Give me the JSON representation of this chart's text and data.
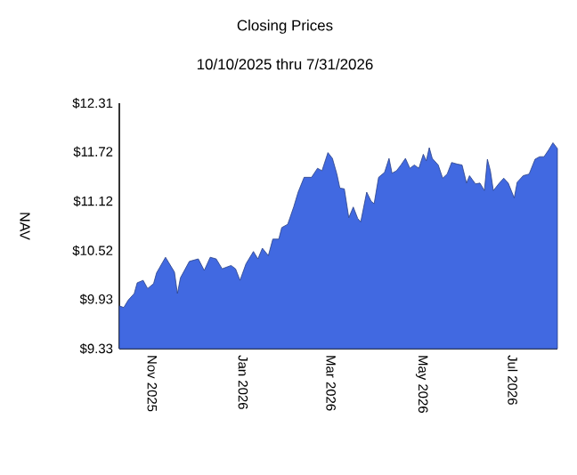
{
  "chart_data": {
    "type": "area",
    "title": "Closing Prices",
    "subtitle": "10/10/2025 thru 7/31/2026",
    "ylabel": "NAV",
    "xlim": [
      "2025-10-10",
      "2026-07-31"
    ],
    "xticks": [
      {
        "value": "2025-11-01",
        "label": "Nov 2025"
      },
      {
        "value": "2026-01-01",
        "label": "Jan 2026"
      },
      {
        "value": "2026-03-01",
        "label": "Mar 2026"
      },
      {
        "value": "2026-05-01",
        "label": "May 2026"
      },
      {
        "value": "2026-07-01",
        "label": "Jul 2026"
      }
    ],
    "ylim": [
      9.33,
      12.31
    ],
    "yticks": [
      {
        "value": 9.33,
        "label": "$9.33"
      },
      {
        "value": 9.93,
        "label": "$9.93"
      },
      {
        "value": 10.52,
        "label": "$10.52"
      },
      {
        "value": 11.12,
        "label": "$11.12"
      },
      {
        "value": 11.72,
        "label": "$11.72"
      },
      {
        "value": 12.31,
        "label": "$12.31"
      }
    ],
    "grid": false,
    "series": [
      {
        "color": "#4169e1",
        "x": [
          "2025-10-10",
          "2025-10-13",
          "2025-10-16",
          "2025-10-20",
          "2025-10-22",
          "2025-10-26",
          "2025-10-29",
          "2025-11-02",
          "2025-11-04",
          "2025-11-10",
          "2025-11-16",
          "2025-11-18",
          "2025-11-20",
          "2025-11-26",
          "2025-12-02",
          "2025-12-06",
          "2025-12-10",
          "2025-12-14",
          "2025-12-18",
          "2025-12-24",
          "2025-12-27",
          "2025-12-30",
          "2026-01-03",
          "2026-01-08",
          "2026-01-11",
          "2026-01-14",
          "2026-01-18",
          "2026-01-21",
          "2026-01-25",
          "2026-01-27",
          "2026-01-31",
          "2026-02-04",
          "2026-02-07",
          "2026-02-11",
          "2026-02-16",
          "2026-02-20",
          "2026-02-23",
          "2026-02-27",
          "2026-03-02",
          "2026-03-05",
          "2026-03-07",
          "2026-03-10",
          "2026-03-13",
          "2026-03-16",
          "2026-03-19",
          "2026-03-21",
          "2026-03-25",
          "2026-03-28",
          "2026-03-30",
          "2026-04-02",
          "2026-04-06",
          "2026-04-09",
          "2026-04-11",
          "2026-04-14",
          "2026-04-17",
          "2026-04-20",
          "2026-04-23",
          "2026-04-26",
          "2026-04-29",
          "2026-05-02",
          "2026-05-04",
          "2026-05-06",
          "2026-05-08",
          "2026-05-12",
          "2026-05-15",
          "2026-05-18",
          "2026-05-21",
          "2026-05-25",
          "2026-05-28",
          "2026-05-31",
          "2026-06-02",
          "2026-06-06",
          "2026-06-09",
          "2026-06-12",
          "2026-06-14",
          "2026-06-16",
          "2026-06-18",
          "2026-06-22",
          "2026-06-25",
          "2026-06-28",
          "2026-07-02",
          "2026-07-04",
          "2026-07-08",
          "2026-07-12",
          "2026-07-16",
          "2026-07-19",
          "2026-07-22",
          "2026-07-25",
          "2026-07-28",
          "2026-07-31"
        ],
        "values": [
          9.85,
          9.83,
          9.92,
          10.0,
          10.13,
          10.16,
          10.06,
          10.12,
          10.25,
          10.44,
          10.26,
          10.0,
          10.19,
          10.39,
          10.42,
          10.28,
          10.44,
          10.42,
          10.3,
          10.34,
          10.3,
          10.16,
          10.36,
          10.51,
          10.42,
          10.55,
          10.46,
          10.66,
          10.66,
          10.8,
          10.84,
          11.05,
          11.23,
          11.41,
          11.41,
          11.52,
          11.49,
          11.71,
          11.64,
          11.45,
          11.28,
          11.27,
          10.92,
          11.05,
          10.91,
          10.87,
          11.23,
          11.12,
          11.09,
          11.41,
          11.47,
          11.64,
          11.46,
          11.49,
          11.56,
          11.64,
          11.52,
          11.56,
          11.52,
          11.69,
          11.61,
          11.77,
          11.64,
          11.56,
          11.4,
          11.45,
          11.59,
          11.57,
          11.56,
          11.34,
          11.43,
          11.33,
          11.34,
          11.25,
          11.63,
          11.49,
          11.25,
          11.34,
          11.4,
          11.34,
          11.16,
          11.35,
          11.43,
          11.45,
          11.63,
          11.66,
          11.66,
          11.74,
          11.83,
          11.76
        ]
      }
    ]
  }
}
